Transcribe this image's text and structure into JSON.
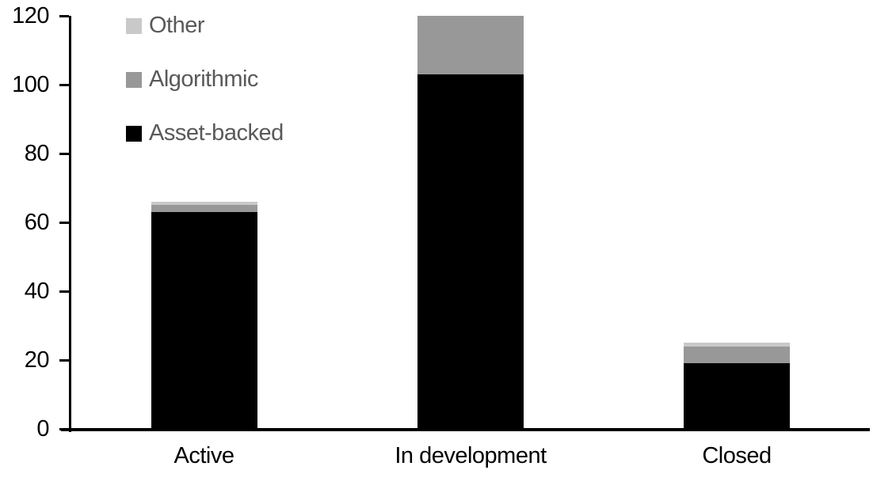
{
  "chart_data": {
    "type": "bar",
    "stacked": true,
    "title": "",
    "xlabel": "",
    "ylabel": "",
    "categories": [
      "Active",
      "In development",
      "Closed"
    ],
    "series": [
      {
        "name": "Asset-backed",
        "color": "#000000",
        "values": [
          63,
          103,
          19
        ]
      },
      {
        "name": "Algorithmic",
        "color": "#989898",
        "values": [
          2,
          17,
          5
        ]
      },
      {
        "name": "Other",
        "color": "#c9c9c9",
        "values": [
          1,
          0,
          1
        ]
      }
    ],
    "ylim": [
      0,
      120
    ],
    "yticks": [
      0,
      20,
      40,
      60,
      80,
      100,
      120
    ],
    "ytick_labels": [
      "0",
      "20",
      "40",
      "60",
      "80",
      "100",
      "120"
    ],
    "grid": false,
    "legend_position": "top-left"
  },
  "legend": {
    "text_color": "#595959",
    "items": [
      {
        "label": "Other",
        "color": "#c9c9c9"
      },
      {
        "label": "Algorithmic",
        "color": "#989898"
      },
      {
        "label": "Asset-backed",
        "color": "#000000"
      }
    ]
  },
  "axis": {
    "color": "#000000"
  }
}
